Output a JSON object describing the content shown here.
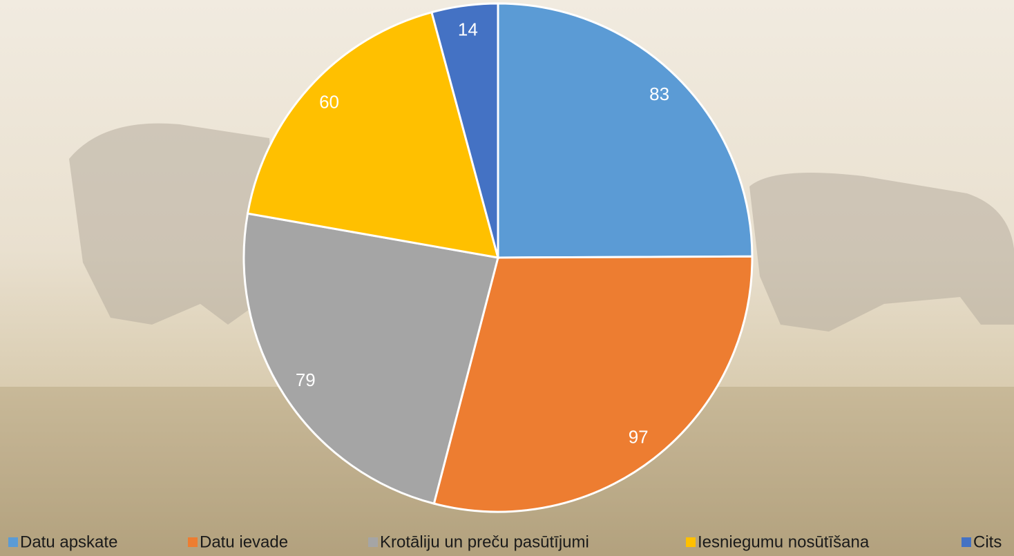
{
  "chart_data": {
    "type": "pie",
    "categories": [
      "Datu apskate",
      "Datu ievade",
      "Krotāliju un preču pasūtījumi",
      "Iesniegumu nosūtīšana",
      "Cits"
    ],
    "values": [
      83,
      97,
      79,
      60,
      14
    ],
    "colors": [
      "#5b9bd5",
      "#ed7d31",
      "#a5a5a5",
      "#ffc000",
      "#4472c4"
    ],
    "legend": "bottom"
  }
}
